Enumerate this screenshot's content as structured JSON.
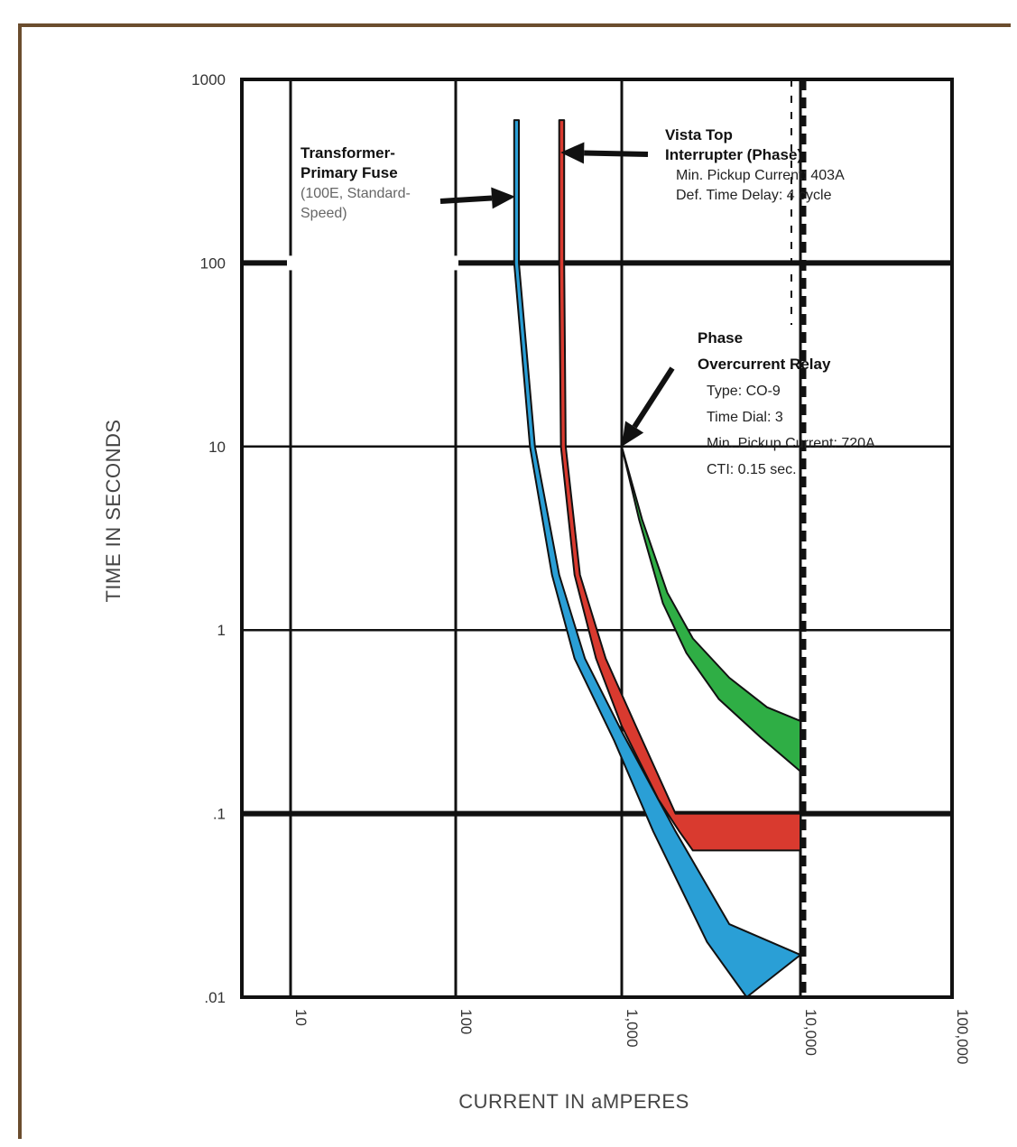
{
  "chart_data": {
    "type": "line",
    "title": "",
    "xlabel": "CURRENT IN aMPERES",
    "ylabel": "TIME IN SECONDS",
    "x_scale": "log",
    "y_scale": "log",
    "xlim": [
      10,
      100000
    ],
    "ylim": [
      0.01,
      1000
    ],
    "grid": true,
    "x_ticks": [
      {
        "value": 10,
        "label": "10"
      },
      {
        "value": 100,
        "label": "100"
      },
      {
        "value": 1000,
        "label": "1,000"
      },
      {
        "value": 10000,
        "label": "10,000"
      },
      {
        "value": 100000,
        "label": "100,000"
      }
    ],
    "y_ticks": [
      {
        "value": 1000,
        "label": "1000"
      },
      {
        "value": 100,
        "label": "100"
      },
      {
        "value": 10,
        "label": "10"
      },
      {
        "value": 1,
        "label": "1"
      },
      {
        "value": 0.1,
        "label": ".1"
      },
      {
        "value": 0.01,
        "label": ".01"
      }
    ],
    "series": [
      {
        "color": "#2a9fd6",
        "upper": [
          [
            240,
            600
          ],
          [
            240,
            100
          ],
          [
            300,
            10
          ],
          [
            420,
            2
          ],
          [
            600,
            0.7
          ],
          [
            1000,
            0.28
          ],
          [
            2000,
            0.08
          ],
          [
            4000,
            0.025
          ],
          [
            10000,
            0.017
          ]
        ],
        "lower": [
          [
            225,
            600
          ],
          [
            225,
            100
          ],
          [
            280,
            10
          ],
          [
            380,
            2
          ],
          [
            520,
            0.7
          ],
          [
            900,
            0.25
          ],
          [
            1500,
            0.08
          ],
          [
            3000,
            0.02
          ],
          [
            5000,
            0.01
          ]
        ]
      },
      {
        "color": "#d93a2f",
        "upper": [
          [
            450,
            600
          ],
          [
            450,
            100
          ],
          [
            460,
            10
          ],
          [
            560,
            2
          ],
          [
            800,
            0.7
          ],
          [
            1200,
            0.3
          ],
          [
            2000,
            0.1
          ],
          [
            10000,
            0.1
          ]
        ],
        "lower": [
          [
            420,
            600
          ],
          [
            420,
            100
          ],
          [
            430,
            10
          ],
          [
            520,
            2
          ],
          [
            700,
            0.7
          ],
          [
            1000,
            0.3
          ],
          [
            1600,
            0.12
          ],
          [
            2100,
            0.08
          ],
          [
            2500,
            0.063
          ],
          [
            10000,
            0.063
          ]
        ]
      },
      {
        "color": "#2fae45",
        "upper": [
          [
            1000,
            10
          ],
          [
            1300,
            4
          ],
          [
            1800,
            1.6
          ],
          [
            2500,
            0.9
          ],
          [
            4000,
            0.55
          ],
          [
            6500,
            0.38
          ],
          [
            10000,
            0.32
          ]
        ],
        "lower": [
          [
            1000,
            10
          ],
          [
            1250,
            4
          ],
          [
            1700,
            1.4
          ],
          [
            2300,
            0.75
          ],
          [
            3500,
            0.42
          ],
          [
            6000,
            0.26
          ],
          [
            10000,
            0.17
          ]
        ]
      }
    ],
    "annotations": [
      {
        "lines": [
          "Transformer-",
          "Primary Fuse",
          "(100E, Standard-",
          "Speed)"
        ],
        "arrow_to": [
          240,
          230
        ]
      },
      {
        "lines": [
          "Vista Top",
          "Interrupter (Phase)",
          "Min. Pickup Current: 403A",
          "Def. Time Delay: 4 cycle"
        ],
        "arrow_to": [
          450,
          400
        ]
      },
      {
        "lines": [
          "Phase",
          "Overcurrent Relay",
          "Type: CO-9",
          "Time Dial: 3",
          "Min. Pickup Current: 720A",
          "CTI: 0.15 sec."
        ],
        "arrow_to": [
          1000,
          10
        ]
      }
    ],
    "dashed_x": 10000
  }
}
